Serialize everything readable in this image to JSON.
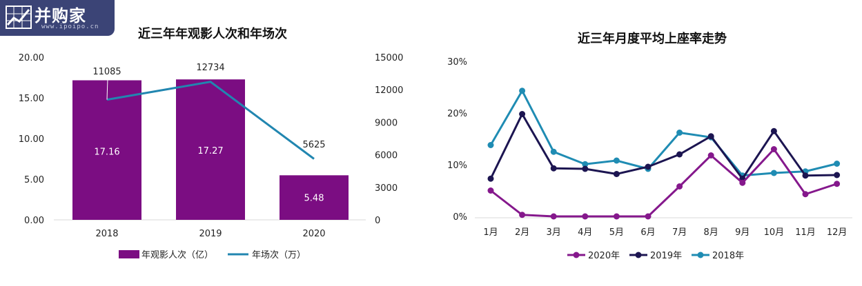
{
  "logo": {
    "text": "并购家",
    "url_text": "www.ipoipo.cn"
  },
  "colors": {
    "purple": "#7b0d82",
    "teal": "#2186b0",
    "navy": "#1c1551",
    "cyan": "#1f8cb3",
    "magenta": "#85188c"
  },
  "chart_data": [
    {
      "type": "bar",
      "title": "近三年年观影人次和年场次",
      "categories": [
        "2018",
        "2019",
        "2020"
      ],
      "series": [
        {
          "name": "年观影人次（亿）",
          "type": "bar",
          "values": [
            17.16,
            17.27,
            5.48
          ],
          "labels": [
            "17.16",
            "17.27",
            "5.48"
          ]
        },
        {
          "name": "年场次（万）",
          "type": "line",
          "values": [
            11085,
            12734,
            5625
          ],
          "labels": [
            "11085",
            "12734",
            "5625"
          ]
        }
      ],
      "y_left": {
        "range": [
          0,
          20
        ],
        "ticks": [
          "0.00",
          "5.00",
          "10.00",
          "15.00",
          "20.00"
        ]
      },
      "y_right": {
        "range": [
          0,
          15000
        ],
        "ticks": [
          "0",
          "3000",
          "6000",
          "9000",
          "12000",
          "15000"
        ]
      },
      "legend": {
        "position": "bottom",
        "items": [
          "年观影人次（亿）",
          "年场次（万）"
        ]
      },
      "grid": false
    },
    {
      "type": "line",
      "title": "近三年月度平均上座率走势",
      "categories": [
        "1月",
        "2月",
        "3月",
        "4月",
        "5月",
        "6月",
        "7月",
        "8月",
        "9月",
        "10月",
        "11月",
        "12月"
      ],
      "series": [
        {
          "name": "2020年",
          "values": [
            5.0,
            0.3,
            0.0,
            0.0,
            0.0,
            0.0,
            5.8,
            11.8,
            6.5,
            13.0,
            4.3,
            6.3
          ]
        },
        {
          "name": "2019年",
          "values": [
            7.3,
            19.8,
            9.3,
            9.2,
            8.2,
            9.6,
            12.0,
            15.5,
            7.3,
            16.5,
            7.9,
            8.0
          ]
        },
        {
          "name": "2018年",
          "values": [
            13.8,
            24.3,
            12.5,
            10.1,
            10.8,
            9.2,
            16.2,
            15.3,
            7.9,
            8.4,
            8.7,
            10.2
          ]
        }
      ],
      "y": {
        "range": [
          0,
          30
        ],
        "unit": "%",
        "ticks": [
          "0%",
          "10%",
          "20%",
          "30%"
        ]
      },
      "legend": {
        "position": "bottom",
        "items": [
          "2020年",
          "2019年",
          "2018年"
        ]
      },
      "grid": false
    }
  ]
}
